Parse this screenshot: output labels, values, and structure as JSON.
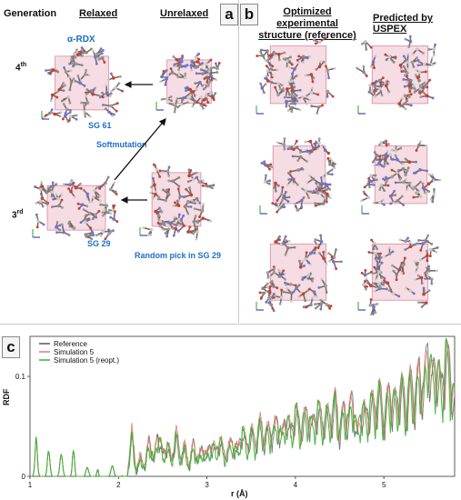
{
  "panel_a": {
    "headers": {
      "generation": "Generation",
      "relaxed": "Relaxed",
      "unrelaxed": "Unrelaxed"
    },
    "gen4": {
      "num": "4",
      "sup": "th"
    },
    "gen3": {
      "num": "3",
      "sup": "rd"
    },
    "label_alpha_rdx": "α-RDX",
    "label_sg61": "SG 61",
    "label_softmutation": "Softmutation",
    "label_sg29": "SG 29",
    "label_random_pick": "Random pick in SG 29",
    "letter": "a"
  },
  "panel_b": {
    "letter": "b",
    "header_left_line1": "Optimized experimental",
    "header_left_line2": "structure (reference)",
    "header_right": "Predicted by USPEX"
  },
  "panel_c": {
    "letter": "c"
  },
  "chart_data": {
    "type": "line",
    "xlabel": "r (Å)",
    "ylabel": "RDF",
    "xlim": [
      1,
      5.8
    ],
    "ylim": [
      0,
      0.14
    ],
    "x_ticks": [
      "1",
      "2",
      "3",
      "4",
      "5"
    ],
    "y_ticks": [
      "0",
      "0.1"
    ],
    "legend_position": "top-left",
    "series": [
      {
        "name": "Reference",
        "color": "#555555"
      },
      {
        "name": "Simulation 5",
        "color": "#e07a6a"
      },
      {
        "name": "Simulation 5 (reopt.)",
        "color": "#3cb034"
      }
    ],
    "x": [
      1.0,
      1.07,
      1.12,
      1.2,
      1.27,
      1.3,
      1.42,
      1.48,
      1.52,
      1.6,
      1.75,
      1.78,
      1.85,
      2.0,
      2.05,
      2.1,
      2.15,
      2.2,
      2.25,
      2.3,
      2.35,
      2.4,
      2.45,
      2.5,
      2.55,
      2.6,
      2.65,
      2.7,
      2.75,
      2.8,
      2.85,
      2.9,
      2.95,
      3.0,
      3.05,
      3.1,
      3.15,
      3.2,
      3.25,
      3.3,
      3.35,
      3.4,
      3.45,
      3.5,
      3.55,
      3.6,
      3.65,
      3.7,
      3.75,
      3.8,
      3.85,
      3.9,
      3.95,
      4.0,
      4.05,
      4.1,
      4.15,
      4.2,
      4.25,
      4.3,
      4.35,
      4.4,
      4.45,
      4.5,
      4.55,
      4.6,
      4.65,
      4.7,
      4.75,
      4.8,
      4.85,
      4.9,
      4.95,
      5.0,
      5.05,
      5.1,
      5.15,
      5.2,
      5.25,
      5.3,
      5.35,
      5.4,
      5.45,
      5.5,
      5.55,
      5.6,
      5.65,
      5.7,
      5.75,
      5.8
    ],
    "values": [
      0.0,
      0.04,
      0.0,
      0.03,
      0.0,
      0.04,
      0.0,
      0.04,
      0.0,
      0.0,
      0.03,
      0.0,
      0.0,
      0.02,
      0.0,
      0.0,
      0.045,
      0.005,
      0.02,
      0.01,
      0.04,
      0.015,
      0.05,
      0.02,
      0.035,
      0.015,
      0.045,
      0.02,
      0.03,
      0.01,
      0.035,
      0.015,
      0.03,
      0.02,
      0.035,
      0.025,
      0.04,
      0.02,
      0.03,
      0.035,
      0.025,
      0.05,
      0.03,
      0.045,
      0.035,
      0.055,
      0.04,
      0.05,
      0.045,
      0.06,
      0.04,
      0.065,
      0.045,
      0.07,
      0.05,
      0.06,
      0.065,
      0.05,
      0.075,
      0.055,
      0.065,
      0.06,
      0.08,
      0.05,
      0.07,
      0.06,
      0.085,
      0.04,
      0.075,
      0.06,
      0.08,
      0.07,
      0.09,
      0.06,
      0.085,
      0.08,
      0.075,
      0.095,
      0.07,
      0.1,
      0.08,
      0.11,
      0.09,
      0.14,
      0.1,
      0.12,
      0.09,
      0.13,
      0.11,
      0.08
    ]
  }
}
